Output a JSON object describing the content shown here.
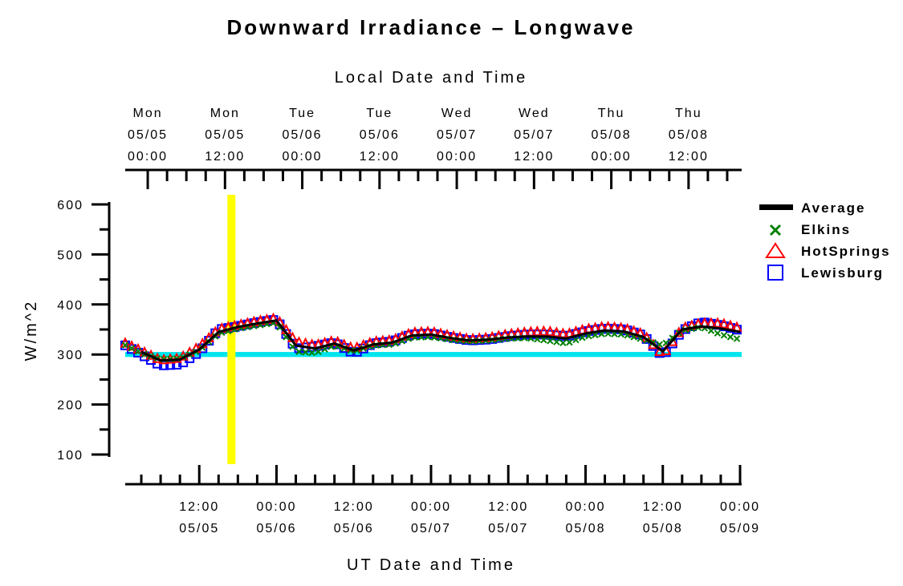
{
  "chart_data": {
    "type": "line",
    "title": "Downward Irradiance – Longwave",
    "top_axis_label": "Local Date and Time",
    "xlabel": "UT Date and Time",
    "ylabel": "W/m^2",
    "ylim": [
      100,
      600
    ],
    "y_ticks": [
      "600",
      "500",
      "400",
      "300",
      "200",
      "100"
    ],
    "xlim_ut_hours": [
      1,
      96
    ],
    "top_ticks": [
      {
        "day": "Mon",
        "date": "05/05",
        "time": "00:00"
      },
      {
        "day": "Mon",
        "date": "05/05",
        "time": "12:00"
      },
      {
        "day": "Tue",
        "date": "05/06",
        "time": "00:00"
      },
      {
        "day": "Tue",
        "date": "05/06",
        "time": "12:00"
      },
      {
        "day": "Wed",
        "date": "05/07",
        "time": "00:00"
      },
      {
        "day": "Wed",
        "date": "05/07",
        "time": "12:00"
      },
      {
        "day": "Thu",
        "date": "05/08",
        "time": "00:00"
      },
      {
        "day": "Thu",
        "date": "05/08",
        "time": "12:00"
      }
    ],
    "bottom_ticks": [
      {
        "time": "12:00",
        "date": "05/05"
      },
      {
        "time": "00:00",
        "date": "05/06"
      },
      {
        "time": "12:00",
        "date": "05/06"
      },
      {
        "time": "00:00",
        "date": "05/07"
      },
      {
        "time": "12:00",
        "date": "05/07"
      },
      {
        "time": "00:00",
        "date": "05/08"
      },
      {
        "time": "12:00",
        "date": "05/08"
      },
      {
        "time": "00:00",
        "date": "05/09"
      }
    ],
    "current_time_marker_ut_hours": 17,
    "reference_band": {
      "low": 295,
      "high": 305,
      "color": "#00e5ee"
    },
    "x_ut_hours": [
      0,
      3,
      6,
      9,
      12,
      15,
      18,
      21,
      24,
      27,
      30,
      33,
      36,
      39,
      42,
      45,
      48,
      51,
      54,
      57,
      60,
      63,
      66,
      69,
      72,
      75,
      78,
      81,
      84,
      87,
      90,
      93,
      96
    ],
    "series": [
      {
        "name": "Average",
        "marker": "line",
        "color": "#000000",
        "values": [
          321,
          305,
          288,
          290,
          310,
          345,
          355,
          362,
          368,
          318,
          312,
          322,
          308,
          320,
          324,
          338,
          340,
          333,
          328,
          330,
          334,
          336,
          336,
          332,
          342,
          348,
          346,
          335,
          306,
          350,
          356,
          352,
          345
        ]
      },
      {
        "name": "Elkins",
        "marker": "x",
        "color": "#008000",
        "values": [
          322,
          303,
          290,
          292,
          308,
          342,
          352,
          358,
          364,
          306,
          303,
          318,
          306,
          318,
          320,
          334,
          335,
          330,
          326,
          328,
          332,
          333,
          328,
          322,
          336,
          342,
          340,
          330,
          318,
          348,
          355,
          340,
          330
        ]
      },
      {
        "name": "HotSprings",
        "marker": "triangle",
        "color": "#ff0000",
        "values": [
          325,
          307,
          288,
          292,
          315,
          350,
          358,
          366,
          372,
          325,
          318,
          327,
          311,
          325,
          328,
          343,
          345,
          337,
          330,
          333,
          340,
          344,
          346,
          340,
          350,
          355,
          352,
          340,
          298,
          352,
          362,
          362,
          352
        ]
      },
      {
        "name": "Lewisburg",
        "marker": "square",
        "color": "#0000ff",
        "values": [
          322,
          300,
          278,
          280,
          305,
          350,
          356,
          364,
          370,
          312,
          316,
          324,
          302,
          322,
          326,
          340,
          342,
          334,
          328,
          330,
          336,
          340,
          340,
          336,
          346,
          352,
          350,
          338,
          296,
          348,
          365,
          358,
          348
        ]
      }
    ],
    "legend_position": "right",
    "grid": false
  }
}
